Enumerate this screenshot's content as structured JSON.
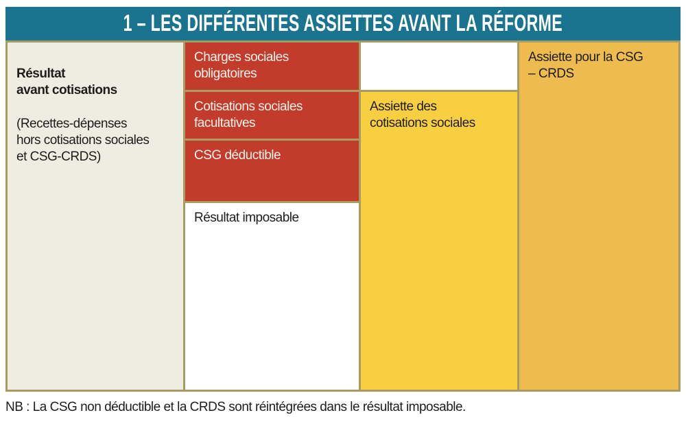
{
  "header": {
    "title": "1 – LES DIFFÉRENTES ASSIETTES AVANT LA RÉFORME"
  },
  "diagram": {
    "result_column": {
      "title": "Résultat\navant cotisations",
      "subtitle": "(Recettes-dépenses\nhors cotisations sociales\net CSG-CRDS)"
    },
    "deduction_blocks": [
      {
        "label": "Charges sociales\nobligatoires"
      },
      {
        "label": "Cotisations sociales\nfacultatives"
      },
      {
        "label": "CSG déductible"
      }
    ],
    "taxable_result_label": "Résultat imposable",
    "social_base_label": "Assiette des\ncotisations sociales",
    "csg_base_label": "Assiette pour la CSG\n– CRDS"
  },
  "note": "NB : La CSG non déductible et la CRDS sont réintégrées dans le résultat imposable.",
  "colors": {
    "header_teal": "#1a7490",
    "block_red": "#c23b2b",
    "result_beige": "#efece2",
    "social_base_yellow": "#f9cf42",
    "csg_base_orange": "#eebc4e",
    "grid_border_tan": "#a99c63",
    "text_dark": "#1d1d1b",
    "text_light": "#f8f4ec"
  }
}
